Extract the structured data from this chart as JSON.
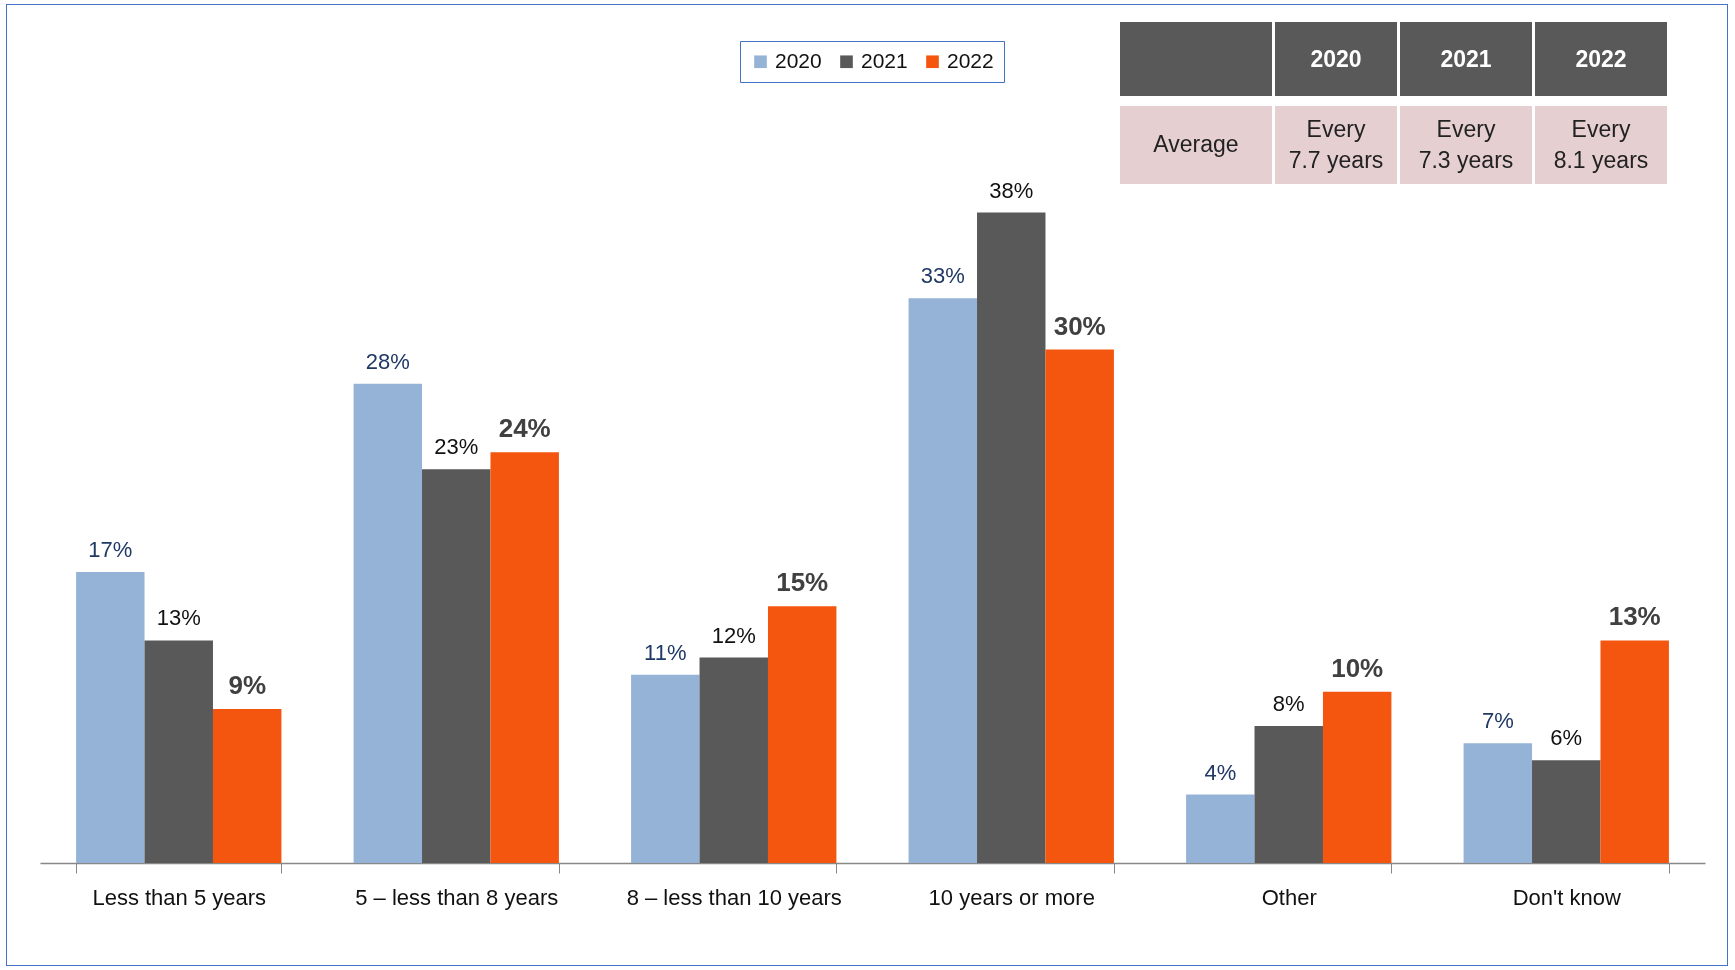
{
  "chart_data": [
    {
      "type": "bar",
      "categories": [
        "Less than 5 years",
        "5 – less than 8 years",
        "8 – less than 10 years",
        "10 years or more",
        "Other",
        "Don't know"
      ],
      "series": [
        {
          "name": "2020",
          "color": "#95b3d7",
          "values": [
            17,
            28,
            11,
            33,
            4,
            7
          ],
          "value_labels": [
            "17%",
            "28%",
            "11%",
            "33%",
            "4%",
            "7%"
          ]
        },
        {
          "name": "2021",
          "color": "#595959",
          "values": [
            13,
            23,
            12,
            38,
            8,
            6
          ],
          "value_labels": [
            "13%",
            "23%",
            "12%",
            "38%",
            "8%",
            "6%"
          ]
        },
        {
          "name": "2022",
          "color": "#f4560f",
          "values": [
            9,
            24,
            15,
            30,
            10,
            13
          ],
          "value_labels": [
            "9%",
            "24%",
            "15%",
            "30%",
            "10%",
            "13%"
          ]
        }
      ],
      "legend": "top",
      "grid": false
    },
    {
      "type": "other",
      "categories": [
        "2020",
        "2021",
        "2022"
      ],
      "y_categories": [
        "Average"
      ],
      "cell_labels": [
        [
          "Every 7.7 years",
          "Every 7.3 years",
          "Every 8.1 years"
        ]
      ]
    }
  ]
}
